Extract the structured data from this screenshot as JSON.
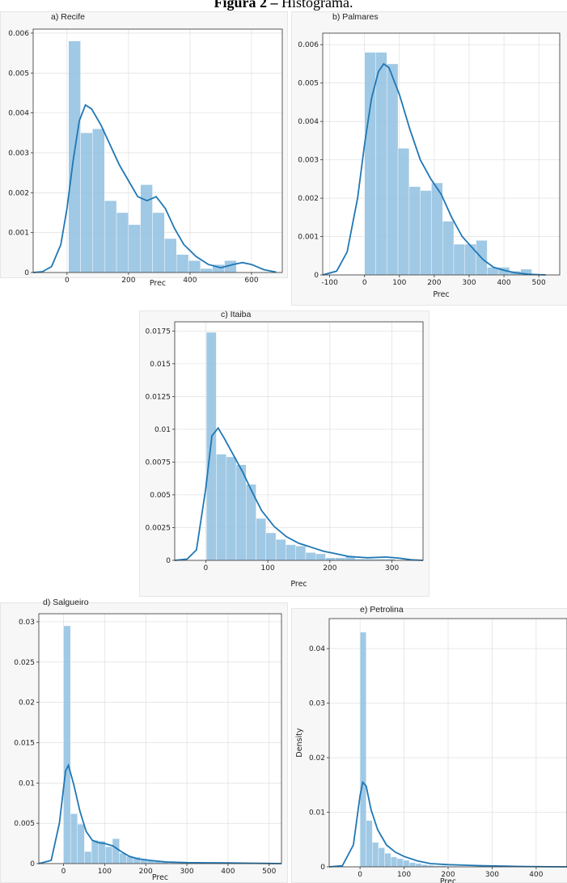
{
  "figure": {
    "title_bold": "Figura 2 –",
    "title_rest": " Histograma."
  },
  "colors": {
    "bar": "#8fbfe0",
    "kde": "#1f77b4",
    "grid": "#dadada"
  },
  "chart_data": [
    {
      "id": "recife",
      "type": "bar",
      "title": "a) Recife",
      "xlabel": "Prec",
      "ylabel": "",
      "xlim": [
        -110,
        700
      ],
      "ylim": [
        0,
        0.0061
      ],
      "xticks": [
        0,
        200,
        400,
        600
      ],
      "yticks": [
        0,
        0.001,
        0.002,
        0.003,
        0.004,
        0.005,
        0.006
      ],
      "ytick_labels": [
        "0",
        "0.001",
        "0.002",
        "0.003",
        "0.004",
        "0.005",
        "0.006"
      ],
      "bin_start": 5,
      "bin_width": 39,
      "values": [
        0.0058,
        0.0035,
        0.0036,
        0.0018,
        0.0015,
        0.0012,
        0.0022,
        0.0015,
        0.00085,
        0.00045,
        0.0003,
        0.0001,
        0.0002,
        0.0003
      ],
      "kde": [
        [
          -110,
          0
        ],
        [
          -80,
          2e-05
        ],
        [
          -50,
          0.00015
        ],
        [
          -20,
          0.0007
        ],
        [
          0,
          0.0016
        ],
        [
          20,
          0.0028
        ],
        [
          40,
          0.0038
        ],
        [
          60,
          0.0042
        ],
        [
          80,
          0.0041
        ],
        [
          110,
          0.0037
        ],
        [
          140,
          0.0032
        ],
        [
          170,
          0.0027
        ],
        [
          200,
          0.0023
        ],
        [
          230,
          0.0019
        ],
        [
          260,
          0.0018
        ],
        [
          290,
          0.0019
        ],
        [
          320,
          0.0016
        ],
        [
          350,
          0.0011
        ],
        [
          380,
          0.0007
        ],
        [
          420,
          0.0004
        ],
        [
          460,
          0.0002
        ],
        [
          500,
          0.00012
        ],
        [
          540,
          0.0002
        ],
        [
          570,
          0.00025
        ],
        [
          600,
          0.0002
        ],
        [
          640,
          7e-05
        ],
        [
          680,
          1e-05
        ]
      ]
    },
    {
      "id": "palmares",
      "type": "bar",
      "title": "b) Palmares",
      "xlabel": "Prec",
      "ylabel": "",
      "xlim": [
        -120,
        560
      ],
      "ylim": [
        0,
        0.0063
      ],
      "xticks": [
        -100,
        0,
        100,
        200,
        300,
        400,
        500
      ],
      "yticks": [
        0,
        0.001,
        0.002,
        0.003,
        0.004,
        0.005,
        0.006
      ],
      "ytick_labels": [
        "0",
        "0.001",
        "0.002",
        "0.003",
        "0.004",
        "0.005",
        "0.006"
      ],
      "bin_start": 0,
      "bin_width": 32,
      "values": [
        0.0058,
        0.0058,
        0.0055,
        0.0033,
        0.0023,
        0.0022,
        0.0024,
        0.0014,
        0.0008,
        0.0008,
        0.0009,
        0.0002,
        0.0002,
        0.0001,
        0.00015
      ],
      "kde": [
        [
          -120,
          0
        ],
        [
          -80,
          0.0001
        ],
        [
          -50,
          0.0006
        ],
        [
          -20,
          0.002
        ],
        [
          0,
          0.0034
        ],
        [
          20,
          0.0046
        ],
        [
          40,
          0.0053
        ],
        [
          55,
          0.0055
        ],
        [
          70,
          0.0054
        ],
        [
          100,
          0.0047
        ],
        [
          130,
          0.0038
        ],
        [
          160,
          0.003
        ],
        [
          190,
          0.0025
        ],
        [
          220,
          0.0021
        ],
        [
          250,
          0.0015
        ],
        [
          280,
          0.001
        ],
        [
          310,
          0.0007
        ],
        [
          340,
          0.0004
        ],
        [
          370,
          0.0002
        ],
        [
          400,
          0.00012
        ],
        [
          430,
          6e-05
        ],
        [
          470,
          2e-05
        ],
        [
          520,
          0
        ]
      ]
    },
    {
      "id": "itaiba",
      "type": "bar",
      "title": "c) Itaiba",
      "xlabel": "Prec",
      "ylabel": "",
      "xlim": [
        -50,
        350
      ],
      "ylim": [
        0,
        0.0182
      ],
      "xticks": [
        0,
        100,
        200,
        300
      ],
      "yticks": [
        0,
        0.0025,
        0.005,
        0.0075,
        0.01,
        0.0125,
        0.015,
        0.0175
      ],
      "ytick_labels": [
        "0",
        "0.0025",
        "0.005",
        "0.0075",
        "0.01",
        "0.0125",
        "0.015",
        "0.0175"
      ],
      "bin_start": 1,
      "bin_width": 16,
      "values": [
        0.0174,
        0.0081,
        0.0079,
        0.0073,
        0.0058,
        0.0032,
        0.0021,
        0.0016,
        0.0012,
        0.0011,
        0.0006,
        0.0005,
        0.0002,
        0.0002,
        0.0003,
        0.0001,
        0.0001,
        0.0001,
        0.0001
      ],
      "kde": [
        [
          -50,
          0
        ],
        [
          -30,
          0.0001
        ],
        [
          -15,
          0.0008
        ],
        [
          0,
          0.0055
        ],
        [
          10,
          0.0095
        ],
        [
          20,
          0.0101
        ],
        [
          30,
          0.0093
        ],
        [
          45,
          0.008
        ],
        [
          60,
          0.0067
        ],
        [
          75,
          0.0052
        ],
        [
          90,
          0.0038
        ],
        [
          110,
          0.0026
        ],
        [
          130,
          0.0018
        ],
        [
          150,
          0.0013
        ],
        [
          170,
          0.001
        ],
        [
          190,
          0.0007
        ],
        [
          210,
          0.0005
        ],
        [
          230,
          0.0003
        ],
        [
          260,
          0.0002
        ],
        [
          290,
          0.00025
        ],
        [
          310,
          0.00018
        ],
        [
          330,
          5e-05
        ],
        [
          350,
          0
        ]
      ]
    },
    {
      "id": "salgueiro",
      "type": "bar",
      "title": "d) Salgueiro",
      "xlabel": "Prec",
      "ylabel": "",
      "xlim": [
        -60,
        530
      ],
      "ylim": [
        0,
        0.031
      ],
      "xticks": [
        0,
        100,
        200,
        300,
        400,
        500
      ],
      "yticks": [
        0,
        0.005,
        0.01,
        0.015,
        0.02,
        0.025,
        0.03
      ],
      "ytick_labels": [
        "0",
        "0.005",
        "0.01",
        "0.015",
        "0.02",
        "0.025",
        "0.03"
      ],
      "bin_start": 0,
      "bin_width": 17,
      "values": [
        0.0295,
        0.0062,
        0.0049,
        0.0015,
        0.0029,
        0.0028,
        0.0021,
        0.0031,
        0.0013,
        0.0009,
        0.0008,
        0.0006,
        0.0004,
        0.0003,
        0.0002,
        0.0001
      ],
      "kde": [
        [
          -60,
          0
        ],
        [
          -30,
          0.0004
        ],
        [
          -10,
          0.005
        ],
        [
          5,
          0.0115
        ],
        [
          12,
          0.0122
        ],
        [
          25,
          0.0098
        ],
        [
          40,
          0.0065
        ],
        [
          55,
          0.004
        ],
        [
          70,
          0.0029
        ],
        [
          85,
          0.0026
        ],
        [
          100,
          0.0025
        ],
        [
          120,
          0.0022
        ],
        [
          140,
          0.0015
        ],
        [
          160,
          0.0009
        ],
        [
          180,
          0.0006
        ],
        [
          210,
          0.0004
        ],
        [
          250,
          0.0002
        ],
        [
          300,
          0.00012
        ],
        [
          350,
          0.0001
        ],
        [
          400,
          8e-05
        ],
        [
          450,
          5e-05
        ],
        [
          500,
          2e-05
        ],
        [
          530,
          0
        ]
      ]
    },
    {
      "id": "petrolina",
      "type": "bar",
      "title": "e) Petrolina",
      "xlabel": "Prec",
      "ylabel": "Density",
      "xlim": [
        -70,
        470
      ],
      "ylim": [
        0,
        0.0455
      ],
      "xticks": [
        0,
        100,
        200,
        300,
        400
      ],
      "yticks": [
        0,
        0.01,
        0.02,
        0.03,
        0.04
      ],
      "ytick_labels": [
        "0",
        "0.01",
        "0.02",
        "0.03",
        "0.04"
      ],
      "bin_start": 0,
      "bin_width": 14,
      "values": [
        0.043,
        0.0085,
        0.0045,
        0.0035,
        0.0025,
        0.0018,
        0.0015,
        0.0012,
        0.0008,
        0.0006,
        0.0004,
        0.0003,
        0.0002,
        0.0002,
        0.0001,
        0.0001
      ],
      "kde": [
        [
          -70,
          0
        ],
        [
          -40,
          0.0002
        ],
        [
          -15,
          0.004
        ],
        [
          0,
          0.013
        ],
        [
          6,
          0.0155
        ],
        [
          14,
          0.0148
        ],
        [
          25,
          0.0105
        ],
        [
          40,
          0.0068
        ],
        [
          60,
          0.004
        ],
        [
          80,
          0.0027
        ],
        [
          100,
          0.0019
        ],
        [
          130,
          0.0011
        ],
        [
          160,
          0.0006
        ],
        [
          200,
          0.0004
        ],
        [
          240,
          0.0003
        ],
        [
          280,
          0.0002
        ],
        [
          330,
          0.00012
        ],
        [
          380,
          6e-05
        ],
        [
          430,
          2e-05
        ],
        [
          470,
          0
        ]
      ]
    }
  ]
}
